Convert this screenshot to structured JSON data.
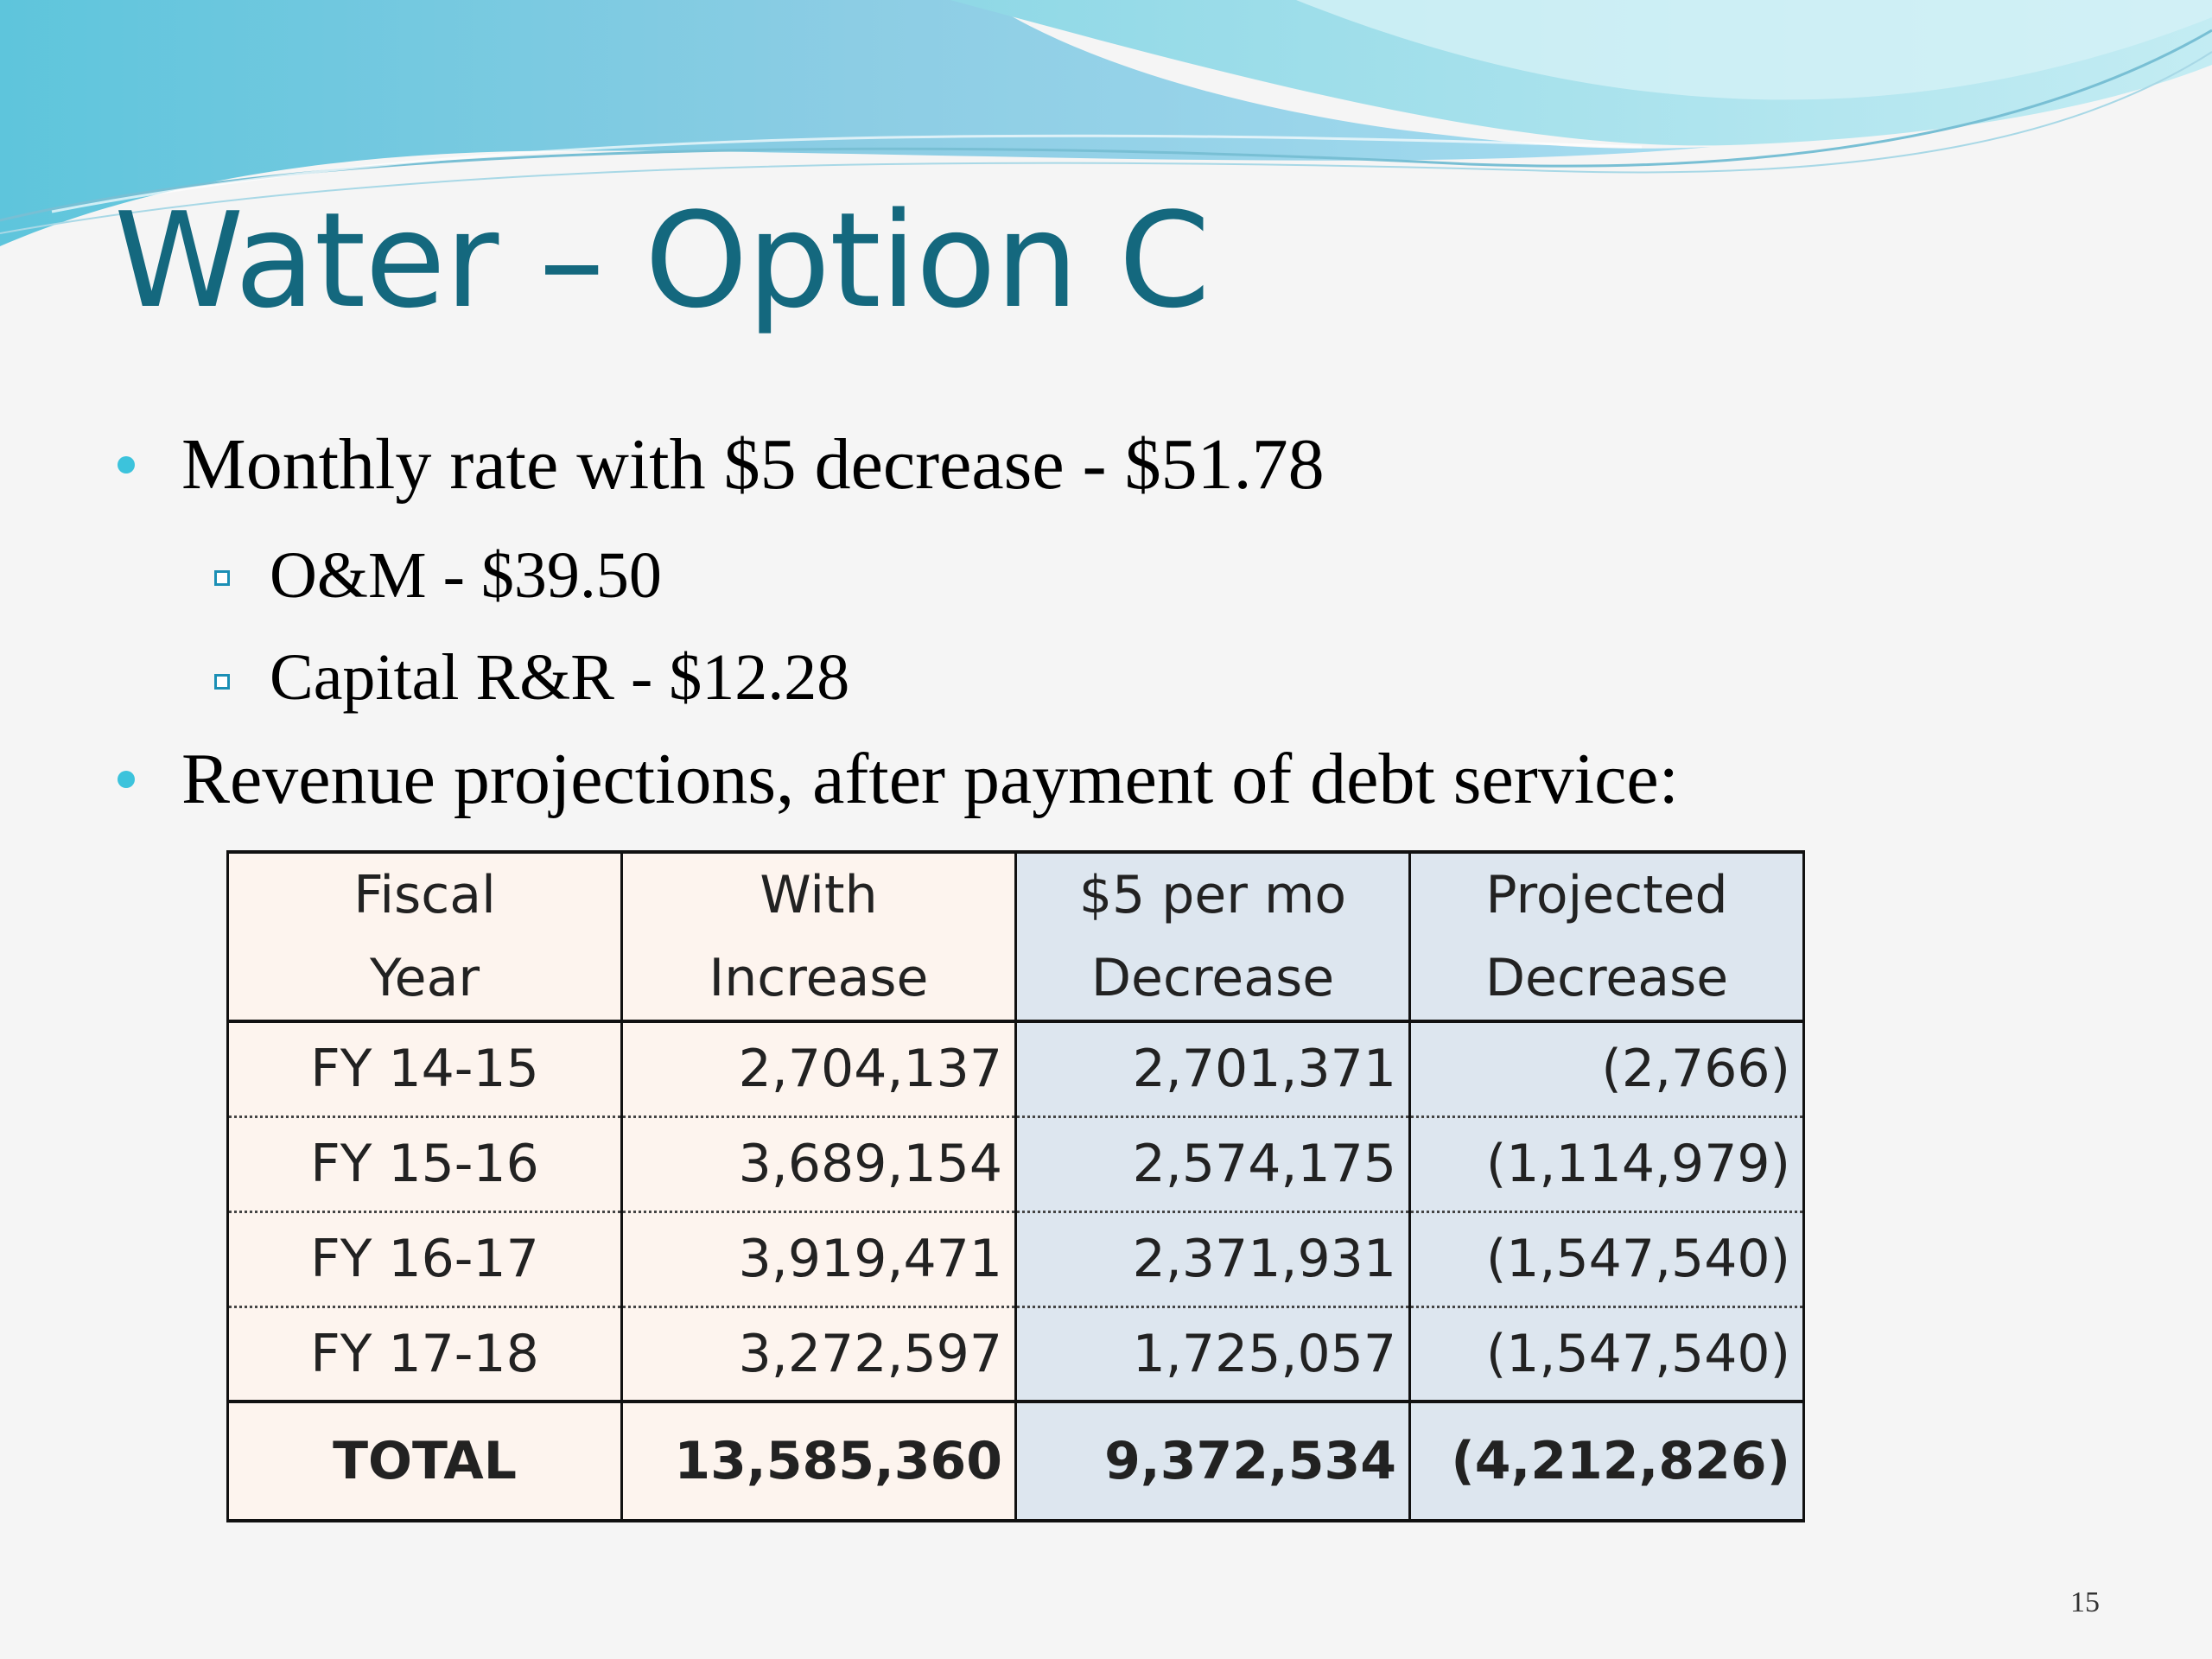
{
  "slide": {
    "title": "Water – Option C",
    "bullets": {
      "monthly": "Monthly rate with $5 decrease - $51.78",
      "om": "O&M - $39.50",
      "capital": "Capital R&R - $12.28",
      "revenue": "Revenue projections, after payment of debt service:"
    },
    "page_number": "15"
  },
  "colors": {
    "title": "#14687e",
    "bullet": "#3cc3dc",
    "sub_bullet": "#1b8fb5",
    "cols_1_2_fill": "#fdf4ee",
    "cols_3_4_fill": "#dde6ef"
  },
  "icons": {
    "bullet": "round-dot-icon",
    "sub_bullet": "hollow-square-icon"
  },
  "table": {
    "headers": [
      [
        "Fiscal",
        "Year"
      ],
      [
        "With",
        "Increase"
      ],
      [
        "$5 per mo",
        "Decrease"
      ],
      [
        "Projected",
        "Decrease"
      ]
    ],
    "rows": [
      [
        "FY 14-15",
        "2,704,137",
        "2,701,371",
        "(2,766)"
      ],
      [
        "FY 15-16",
        "3,689,154",
        "2,574,175",
        "(1,114,979)"
      ],
      [
        "FY 16-17",
        "3,919,471",
        "2,371,931",
        "(1,547,540)"
      ],
      [
        "FY 17-18",
        "3,272,597",
        "1,725,057",
        "(1,547,540)"
      ]
    ],
    "total": [
      "TOTAL",
      "13,585,360",
      "9,372,534",
      "(4,212,826)"
    ]
  }
}
